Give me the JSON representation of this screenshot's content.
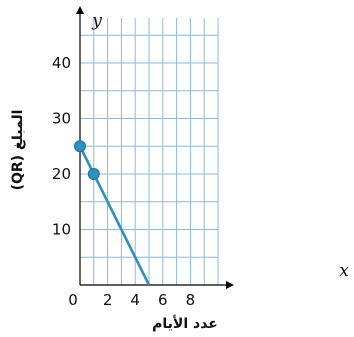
{
  "chart_data": {
    "type": "line",
    "xlabel": "عدد الأيام",
    "ylabel": "المبلغ (QR)",
    "x_axis_name": "x",
    "y_axis_name": "y",
    "xlim": [
      0,
      10
    ],
    "ylim": [
      0,
      50
    ],
    "x_ticks": [
      2,
      4,
      6,
      8
    ],
    "y_ticks": [
      10,
      20,
      30,
      40
    ],
    "origin_label": "0",
    "grid": true,
    "series": [
      {
        "x": [
          0,
          1,
          5
        ],
        "y": [
          25,
          20,
          0
        ],
        "marked_points": [
          [
            0,
            25
          ],
          [
            1,
            20
          ]
        ]
      }
    ],
    "colors": {
      "line": "#2f8fbf",
      "grid": "#8fb8d8",
      "axis": "#000000"
    }
  }
}
